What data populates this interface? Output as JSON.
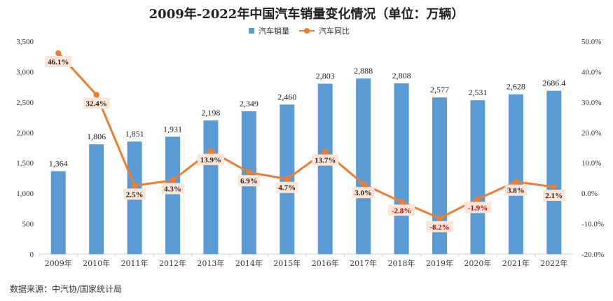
{
  "title": "2009年-2022年中国汽车销量变化情况（单位：万辆）",
  "source": "数据来源：中汽协/国家统计局",
  "legend": {
    "bar_label": "汽车销量",
    "line_label": "汽车同比"
  },
  "colors": {
    "bar": "#5b9bd5",
    "line": "#ed7d31",
    "label_bg": "#fbe5d6",
    "negative_text": "#c00000"
  },
  "chart_data": {
    "type": "bar",
    "categories": [
      "2009年",
      "2010年",
      "2011年",
      "2012年",
      "2013年",
      "2014年",
      "2015年",
      "2016年",
      "2017年",
      "2018年",
      "2019年",
      "2020年",
      "2021年",
      "2022年"
    ],
    "series": [
      {
        "name": "汽车销量",
        "type": "bar",
        "axis": "left",
        "values": [
          1364,
          1806,
          1851,
          1931,
          2198,
          2349,
          2460,
          2803,
          2888,
          2808,
          2577,
          2531,
          2628,
          2686.4
        ],
        "labels": [
          "1,364",
          "1,806",
          "1,851",
          "1,931",
          "2,198",
          "2,349",
          "2,460",
          "2,803",
          "2,888",
          "2,808",
          "2,577",
          "2,531",
          "2,628",
          "2686.4"
        ]
      },
      {
        "name": "汽车同比",
        "type": "line",
        "axis": "right",
        "values": [
          46.1,
          32.4,
          2.5,
          4.3,
          13.9,
          6.9,
          4.7,
          13.7,
          3.0,
          -2.8,
          -8.2,
          -1.9,
          3.8,
          2.1
        ],
        "labels": [
          "46.1%",
          "32.4%",
          "2.5%",
          "4.3%",
          "13.9%",
          "6.9%",
          "4.7%",
          "13.7%",
          "3.0%",
          "-2.8%",
          "-8.2%",
          "-1.9%",
          "3.8%",
          "2.1%"
        ]
      }
    ],
    "y_left": {
      "range": [
        0,
        3500
      ],
      "ticks": [
        "0",
        "500",
        "1,000",
        "1,500",
        "2,000",
        "2,500",
        "3,000",
        "3,500"
      ]
    },
    "y_right": {
      "range": [
        -20,
        50
      ],
      "ticks": [
        "-20.0%",
        "-10.0%",
        "0.0%",
        "10.0%",
        "20.0%",
        "30.0%",
        "40.0%",
        "50.0%"
      ]
    },
    "grid": false,
    "legend_position": "top"
  }
}
